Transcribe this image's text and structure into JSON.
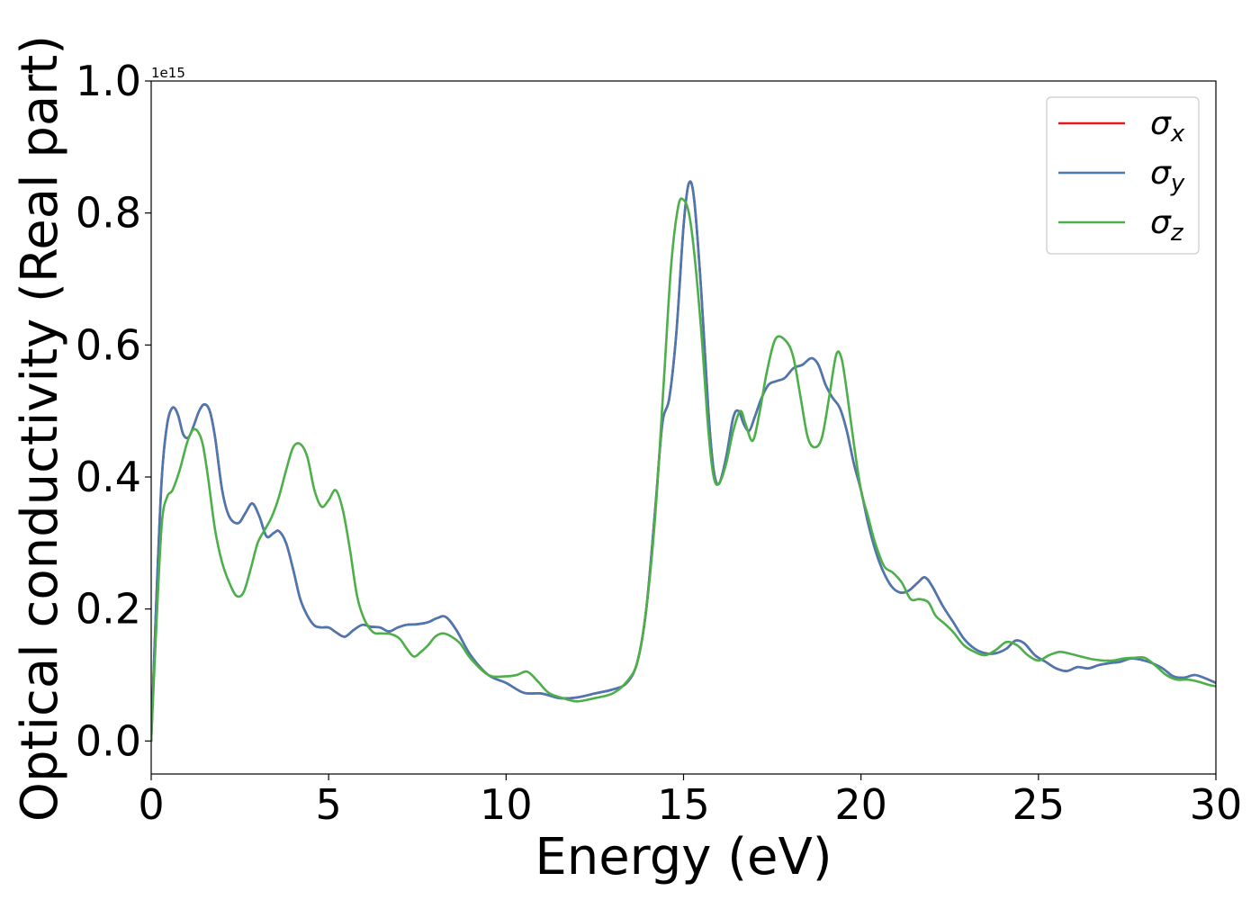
{
  "chart_data": {
    "type": "line",
    "title": "",
    "xlabel": "Energy (eV)",
    "ylabel": "Optical conductivity (Real part)",
    "y_offset_label": "1e15",
    "xlim": [
      0,
      30
    ],
    "ylim": [
      -0.05,
      1.0
    ],
    "x_ticks": [
      0,
      5,
      10,
      15,
      20,
      25,
      30
    ],
    "x_tick_labels": [
      "0",
      "5",
      "10",
      "15",
      "20",
      "25",
      "30"
    ],
    "y_ticks": [
      0.0,
      0.2,
      0.4,
      0.6,
      0.8,
      1.0
    ],
    "y_tick_labels": [
      "0.0",
      "0.2",
      "0.4",
      "0.6",
      "0.8",
      "1.0"
    ],
    "grid": false,
    "legend_position": "top-right",
    "series": [
      {
        "name": "σx",
        "symbol": "σ",
        "subscript": "x",
        "color": "#e41a1c",
        "x": [
          0,
          0.15,
          0.3,
          0.45,
          0.6,
          0.75,
          0.9,
          1.05,
          1.2,
          1.35,
          1.5,
          1.65,
          1.8,
          2.0,
          2.2,
          2.45,
          2.65,
          2.85,
          3.05,
          3.25,
          3.45,
          3.6,
          3.8,
          4.0,
          4.2,
          4.4,
          4.6,
          4.8,
          5.0,
          5.2,
          5.45,
          5.7,
          5.95,
          6.2,
          6.45,
          6.7,
          6.95,
          7.2,
          7.5,
          7.8,
          8.05,
          8.3,
          8.6,
          9.0,
          9.5,
          10.0,
          10.5,
          11.0,
          11.5,
          12.0,
          12.5,
          13.0,
          13.4,
          13.7,
          13.95,
          14.2,
          14.4,
          14.6,
          14.8,
          15.0,
          15.15,
          15.3,
          15.5,
          15.7,
          15.85,
          16.0,
          16.2,
          16.4,
          16.55,
          16.7,
          16.85,
          17.0,
          17.2,
          17.4,
          17.6,
          17.85,
          18.1,
          18.35,
          18.6,
          18.8,
          19.0,
          19.2,
          19.4,
          19.6,
          19.8,
          20.0,
          20.2,
          20.4,
          20.6,
          20.85,
          21.1,
          21.35,
          21.6,
          21.8,
          22.0,
          22.3,
          22.6,
          22.9,
          23.2,
          23.5,
          23.8,
          24.1,
          24.35,
          24.6,
          24.9,
          25.2,
          25.5,
          25.8,
          26.1,
          26.4,
          26.7,
          27.0,
          27.3,
          27.6,
          27.9,
          28.2,
          28.5,
          28.8,
          29.1,
          29.4,
          29.7,
          30.0
        ],
        "y": [
          0.0,
          0.22,
          0.4,
          0.48,
          0.505,
          0.495,
          0.465,
          0.46,
          0.478,
          0.5,
          0.51,
          0.5,
          0.46,
          0.38,
          0.34,
          0.33,
          0.345,
          0.36,
          0.34,
          0.31,
          0.315,
          0.318,
          0.3,
          0.26,
          0.215,
          0.19,
          0.175,
          0.172,
          0.172,
          0.165,
          0.158,
          0.168,
          0.176,
          0.173,
          0.172,
          0.166,
          0.172,
          0.176,
          0.177,
          0.18,
          0.186,
          0.188,
          0.168,
          0.13,
          0.1,
          0.088,
          0.073,
          0.072,
          0.065,
          0.066,
          0.072,
          0.078,
          0.088,
          0.12,
          0.2,
          0.35,
          0.48,
          0.52,
          0.62,
          0.78,
          0.845,
          0.82,
          0.68,
          0.5,
          0.41,
          0.39,
          0.43,
          0.49,
          0.5,
          0.48,
          0.47,
          0.49,
          0.52,
          0.54,
          0.545,
          0.55,
          0.565,
          0.57,
          0.58,
          0.57,
          0.54,
          0.52,
          0.505,
          0.47,
          0.42,
          0.38,
          0.33,
          0.29,
          0.26,
          0.235,
          0.225,
          0.228,
          0.24,
          0.248,
          0.235,
          0.205,
          0.18,
          0.155,
          0.14,
          0.133,
          0.133,
          0.14,
          0.152,
          0.148,
          0.13,
          0.12,
          0.11,
          0.106,
          0.112,
          0.11,
          0.115,
          0.118,
          0.12,
          0.125,
          0.123,
          0.118,
          0.11,
          0.098,
          0.096,
          0.1,
          0.095,
          0.088
        ]
      },
      {
        "name": "σy",
        "symbol": "σ",
        "subscript": "y",
        "color": "#4a78b0",
        "x": [
          0,
          0.15,
          0.3,
          0.45,
          0.6,
          0.75,
          0.9,
          1.05,
          1.2,
          1.35,
          1.5,
          1.65,
          1.8,
          2.0,
          2.2,
          2.45,
          2.65,
          2.85,
          3.05,
          3.25,
          3.45,
          3.6,
          3.8,
          4.0,
          4.2,
          4.4,
          4.6,
          4.8,
          5.0,
          5.2,
          5.45,
          5.7,
          5.95,
          6.2,
          6.45,
          6.7,
          6.95,
          7.2,
          7.5,
          7.8,
          8.05,
          8.3,
          8.6,
          9.0,
          9.5,
          10.0,
          10.5,
          11.0,
          11.5,
          12.0,
          12.5,
          13.0,
          13.4,
          13.7,
          13.95,
          14.2,
          14.4,
          14.6,
          14.8,
          15.0,
          15.15,
          15.3,
          15.5,
          15.7,
          15.85,
          16.0,
          16.2,
          16.4,
          16.55,
          16.7,
          16.85,
          17.0,
          17.2,
          17.4,
          17.6,
          17.85,
          18.1,
          18.35,
          18.6,
          18.8,
          19.0,
          19.2,
          19.4,
          19.6,
          19.8,
          20.0,
          20.2,
          20.4,
          20.6,
          20.85,
          21.1,
          21.35,
          21.6,
          21.8,
          22.0,
          22.3,
          22.6,
          22.9,
          23.2,
          23.5,
          23.8,
          24.1,
          24.35,
          24.6,
          24.9,
          25.2,
          25.5,
          25.8,
          26.1,
          26.4,
          26.7,
          27.0,
          27.3,
          27.6,
          27.9,
          28.2,
          28.5,
          28.8,
          29.1,
          29.4,
          29.7,
          30.0
        ],
        "y": [
          0.0,
          0.22,
          0.4,
          0.48,
          0.505,
          0.495,
          0.465,
          0.46,
          0.478,
          0.5,
          0.51,
          0.5,
          0.46,
          0.38,
          0.34,
          0.33,
          0.345,
          0.36,
          0.34,
          0.31,
          0.315,
          0.318,
          0.3,
          0.26,
          0.215,
          0.19,
          0.175,
          0.172,
          0.172,
          0.165,
          0.158,
          0.168,
          0.176,
          0.173,
          0.172,
          0.166,
          0.172,
          0.176,
          0.177,
          0.18,
          0.186,
          0.188,
          0.168,
          0.13,
          0.1,
          0.088,
          0.073,
          0.072,
          0.065,
          0.066,
          0.072,
          0.078,
          0.088,
          0.12,
          0.2,
          0.35,
          0.48,
          0.52,
          0.62,
          0.78,
          0.845,
          0.82,
          0.68,
          0.5,
          0.41,
          0.39,
          0.43,
          0.49,
          0.5,
          0.48,
          0.47,
          0.49,
          0.52,
          0.54,
          0.545,
          0.55,
          0.565,
          0.57,
          0.58,
          0.57,
          0.54,
          0.52,
          0.505,
          0.47,
          0.42,
          0.38,
          0.33,
          0.29,
          0.26,
          0.235,
          0.225,
          0.228,
          0.24,
          0.248,
          0.235,
          0.205,
          0.18,
          0.155,
          0.14,
          0.133,
          0.133,
          0.14,
          0.152,
          0.148,
          0.13,
          0.12,
          0.11,
          0.106,
          0.112,
          0.11,
          0.115,
          0.118,
          0.12,
          0.125,
          0.123,
          0.118,
          0.11,
          0.098,
          0.096,
          0.1,
          0.095,
          0.088
        ]
      },
      {
        "name": "σz",
        "symbol": "σ",
        "subscript": "z",
        "color": "#4daf4a",
        "x": [
          0,
          0.15,
          0.3,
          0.45,
          0.6,
          0.8,
          1.0,
          1.15,
          1.3,
          1.45,
          1.6,
          1.8,
          2.0,
          2.2,
          2.4,
          2.6,
          2.8,
          3.0,
          3.2,
          3.4,
          3.6,
          3.8,
          4.0,
          4.2,
          4.4,
          4.6,
          4.8,
          5.0,
          5.2,
          5.4,
          5.6,
          5.8,
          6.0,
          6.25,
          6.5,
          6.75,
          7.0,
          7.2,
          7.4,
          7.6,
          7.8,
          8.0,
          8.2,
          8.4,
          8.7,
          9.0,
          9.5,
          10.0,
          10.3,
          10.6,
          10.9,
          11.2,
          11.6,
          12.0,
          12.5,
          13.0,
          13.4,
          13.7,
          13.95,
          14.2,
          14.45,
          14.65,
          14.85,
          15.0,
          15.15,
          15.3,
          15.5,
          15.7,
          15.85,
          16.0,
          16.2,
          16.4,
          16.6,
          16.75,
          16.95,
          17.15,
          17.35,
          17.6,
          17.9,
          18.1,
          18.3,
          18.5,
          18.7,
          18.9,
          19.1,
          19.3,
          19.45,
          19.6,
          19.8,
          20.0,
          20.2,
          20.4,
          20.65,
          20.9,
          21.15,
          21.4,
          21.65,
          21.9,
          22.1,
          22.35,
          22.6,
          22.9,
          23.2,
          23.5,
          23.8,
          24.1,
          24.4,
          24.7,
          25.0,
          25.3,
          25.6,
          25.9,
          26.2,
          26.5,
          26.8,
          27.1,
          27.4,
          27.7,
          28.0,
          28.3,
          28.6,
          28.9,
          29.2,
          29.5,
          29.8,
          30.0
        ],
        "y": [
          0.0,
          0.18,
          0.33,
          0.37,
          0.38,
          0.41,
          0.45,
          0.47,
          0.47,
          0.45,
          0.4,
          0.32,
          0.27,
          0.24,
          0.22,
          0.225,
          0.26,
          0.3,
          0.32,
          0.34,
          0.37,
          0.41,
          0.445,
          0.45,
          0.43,
          0.38,
          0.355,
          0.365,
          0.38,
          0.35,
          0.29,
          0.22,
          0.185,
          0.165,
          0.163,
          0.162,
          0.155,
          0.14,
          0.128,
          0.135,
          0.145,
          0.158,
          0.163,
          0.16,
          0.148,
          0.125,
          0.1,
          0.098,
          0.1,
          0.105,
          0.09,
          0.073,
          0.065,
          0.06,
          0.065,
          0.072,
          0.09,
          0.12,
          0.2,
          0.34,
          0.55,
          0.72,
          0.81,
          0.82,
          0.8,
          0.74,
          0.62,
          0.47,
          0.4,
          0.39,
          0.42,
          0.47,
          0.5,
          0.48,
          0.455,
          0.5,
          0.56,
          0.61,
          0.605,
          0.58,
          0.52,
          0.46,
          0.445,
          0.46,
          0.52,
          0.585,
          0.58,
          0.53,
          0.45,
          0.38,
          0.34,
          0.3,
          0.265,
          0.255,
          0.24,
          0.215,
          0.215,
          0.21,
          0.19,
          0.178,
          0.165,
          0.145,
          0.135,
          0.13,
          0.138,
          0.15,
          0.145,
          0.13,
          0.122,
          0.13,
          0.135,
          0.132,
          0.128,
          0.124,
          0.122,
          0.122,
          0.125,
          0.126,
          0.126,
          0.114,
          0.1,
          0.093,
          0.093,
          0.09,
          0.085,
          0.083
        ]
      }
    ]
  }
}
